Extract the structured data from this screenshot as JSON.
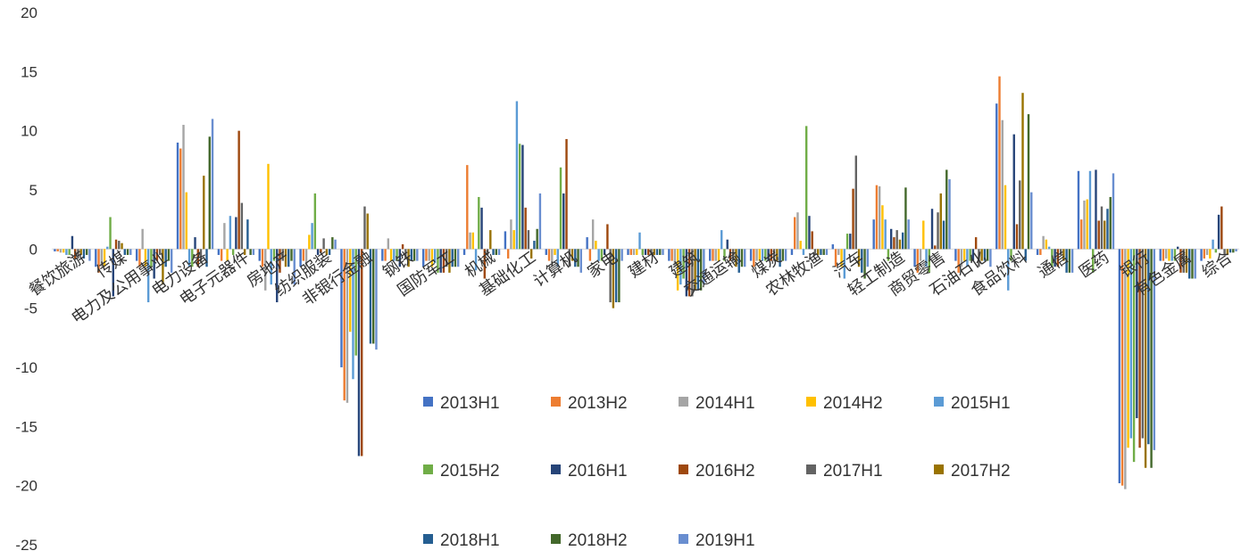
{
  "chart_data": {
    "type": "bar",
    "title": "",
    "xlabel": "",
    "ylabel": "",
    "ylim": [
      -25,
      20
    ],
    "yticks": [
      20,
      15,
      10,
      5,
      0,
      -5,
      -10,
      -15,
      -20,
      -25
    ],
    "grid": false,
    "legend_position": "bottom-center",
    "categories": [
      "餐饮旅游",
      "传媒",
      "电力及公用事业",
      "电力设备",
      "电子元器件",
      "房地产",
      "纺织服装",
      "非银行金融",
      "钢铁",
      "国防军工",
      "机械",
      "基础化工",
      "计算机",
      "家电",
      "建材",
      "建筑",
      "交通运输",
      "煤炭",
      "农林牧渔",
      "汽车",
      "轻工制造",
      "商贸零售",
      "石油石化",
      "食品饮料",
      "通信",
      "医药",
      "银行",
      "有色金属",
      "综合"
    ],
    "series": [
      {
        "name": "2013H1",
        "color": "#4472C4",
        "values": [
          -0.2,
          -1.5,
          -1,
          9,
          -0.5,
          -1,
          -1.5,
          -10,
          -1,
          -1.5,
          -0.5,
          1.5,
          -0.5,
          1,
          -0.5,
          -1,
          -1,
          -1,
          -0.5,
          0.4,
          2.5,
          -1.5,
          -1,
          12.3,
          -0.5,
          6.6,
          -19.8,
          -1,
          -1
        ]
      },
      {
        "name": "2013H2",
        "color": "#ED7D31",
        "values": [
          -0.2,
          -2,
          -1.5,
          8.5,
          -1,
          -1.5,
          -1,
          -12.8,
          -1,
          -1,
          7.1,
          -0.8,
          -1,
          -1,
          -0.5,
          -1,
          -1,
          -1.5,
          2.7,
          -1.5,
          5.4,
          -2,
          -2,
          14.6,
          -0.5,
          2.5,
          -20,
          -1,
          -0.8
        ]
      },
      {
        "name": "2014H1",
        "color": "#A5A5A5",
        "values": [
          -0.3,
          -1.5,
          1.7,
          10.5,
          2.2,
          -3.5,
          -1.5,
          -13,
          0.9,
          -1,
          1.4,
          2.5,
          -1.5,
          2.5,
          -0.5,
          -1.5,
          -1,
          -1,
          3.1,
          -0.5,
          5.3,
          -1,
          -1.5,
          10.9,
          1.1,
          4.1,
          -20.3,
          -0.8,
          -0.5
        ]
      },
      {
        "name": "2014H2",
        "color": "#FFC000",
        "values": [
          -0.3,
          -1.5,
          -1.5,
          4.8,
          -1,
          7.2,
          1.2,
          -7,
          -1,
          -1.5,
          1.4,
          1.6,
          -0.5,
          0.7,
          -0.5,
          -3.5,
          -1,
          -1,
          0.7,
          -1.5,
          3.7,
          2.4,
          -1,
          5.4,
          0.8,
          4.2,
          -16.8,
          -1,
          -0.8
        ]
      },
      {
        "name": "2015H1",
        "color": "#5B9BD5",
        "values": [
          -0.5,
          0.2,
          -4.5,
          -1.5,
          2.8,
          -3,
          2.2,
          -11,
          -1,
          -1.2,
          -1.8,
          12.5,
          -1.5,
          -1,
          1.4,
          -3,
          1.6,
          -1,
          -0.5,
          -2.5,
          2.5,
          -1.5,
          -1.5,
          -3.5,
          0.2,
          6.6,
          -16,
          -1,
          0.8
        ]
      },
      {
        "name": "2015H2",
        "color": "#70AD47",
        "values": [
          -0.5,
          2.7,
          -1.5,
          -1.5,
          -0.5,
          -1,
          4.7,
          -9,
          -1,
          -2,
          4.4,
          8.9,
          6.9,
          -1,
          -0.5,
          -2.5,
          -1,
          -1,
          10.4,
          1.3,
          -1,
          -2,
          -1,
          -1,
          -1.5,
          -2,
          -18,
          -1,
          -0.3
        ]
      },
      {
        "name": "2016H1",
        "color": "#264478",
        "values": [
          1.1,
          -4,
          -2.5,
          1,
          2.7,
          -4.5,
          -0.5,
          -17.5,
          -1.5,
          -2,
          3.5,
          8.8,
          4.7,
          -0.5,
          -0.5,
          -4,
          0.8,
          -1,
          2.8,
          1.3,
          1.7,
          3.4,
          -1,
          9.7,
          -1.5,
          6.7,
          -14.3,
          0.2,
          2.9
        ]
      },
      {
        "name": "2016H2",
        "color": "#9E480E",
        "values": [
          -0.8,
          0.8,
          -1,
          -1.5,
          10,
          -2,
          -0.3,
          -17.5,
          0.4,
          -2,
          -2.5,
          3.5,
          9.3,
          2.1,
          -0.5,
          -4,
          -1,
          -1,
          1.5,
          5.1,
          1,
          0.3,
          1,
          2.1,
          -1.5,
          2.4,
          -16.8,
          -2,
          3.6
        ]
      },
      {
        "name": "2017H1",
        "color": "#636363",
        "values": [
          -0.8,
          0.7,
          -0.5,
          -1,
          3.9,
          -1,
          0.9,
          3.6,
          -0.8,
          -1.5,
          -0.5,
          1.6,
          -1.5,
          -4.5,
          -0.5,
          -4,
          -1,
          -1,
          -0.5,
          7.9,
          1.6,
          3.1,
          -1.5,
          5.8,
          -0.5,
          3.6,
          -16,
          -2,
          -0.5
        ]
      },
      {
        "name": "2017H2",
        "color": "#997300",
        "values": [
          -0.5,
          0.5,
          -3,
          6.2,
          -0.5,
          -1.5,
          -0.5,
          3,
          -1.5,
          -2,
          1.6,
          -0.8,
          -1,
          -5,
          -0.5,
          -3.5,
          -1.5,
          -1,
          -0.5,
          -1.5,
          0.8,
          4.7,
          -1,
          13.2,
          -1,
          2.4,
          -18.5,
          -2,
          -0.5
        ]
      },
      {
        "name": "2018H1",
        "color": "#255E91",
        "values": [
          -0.8,
          -0.5,
          -1.5,
          -1.5,
          2.5,
          -1.5,
          -0.5,
          -8,
          -1,
          -1.5,
          -0.5,
          0.7,
          -1.5,
          -4.5,
          -0.5,
          -3.5,
          -2,
          -1.5,
          -0.5,
          -2,
          1.4,
          2.4,
          -1,
          -1,
          -2,
          3.4,
          -16.5,
          -2.5,
          -0.3
        ]
      },
      {
        "name": "2018H2",
        "color": "#43682B",
        "values": [
          -0.5,
          -0.5,
          -1,
          9.5,
          -0.5,
          -1,
          1,
          -8,
          -1,
          -1.5,
          -0.5,
          1.7,
          -1.5,
          -4.5,
          -0.5,
          -3.5,
          -1.5,
          -1,
          -0.5,
          -2.5,
          5.2,
          6.7,
          -1,
          11.4,
          -2,
          4.4,
          -18.5,
          -2.5,
          -0.3
        ]
      },
      {
        "name": "2019H1",
        "color": "#698ED0",
        "values": [
          -1,
          -0.5,
          -2,
          11,
          -0.5,
          -3,
          0.8,
          -8.5,
          -1,
          -1.5,
          -0.5,
          4.7,
          -2,
          -1,
          -0.5,
          -3,
          -1.5,
          -1,
          -0.5,
          -1.5,
          2.5,
          5.9,
          -1.5,
          4.8,
          -2,
          6.4,
          -17,
          -2.5,
          -0.2
        ]
      }
    ]
  }
}
